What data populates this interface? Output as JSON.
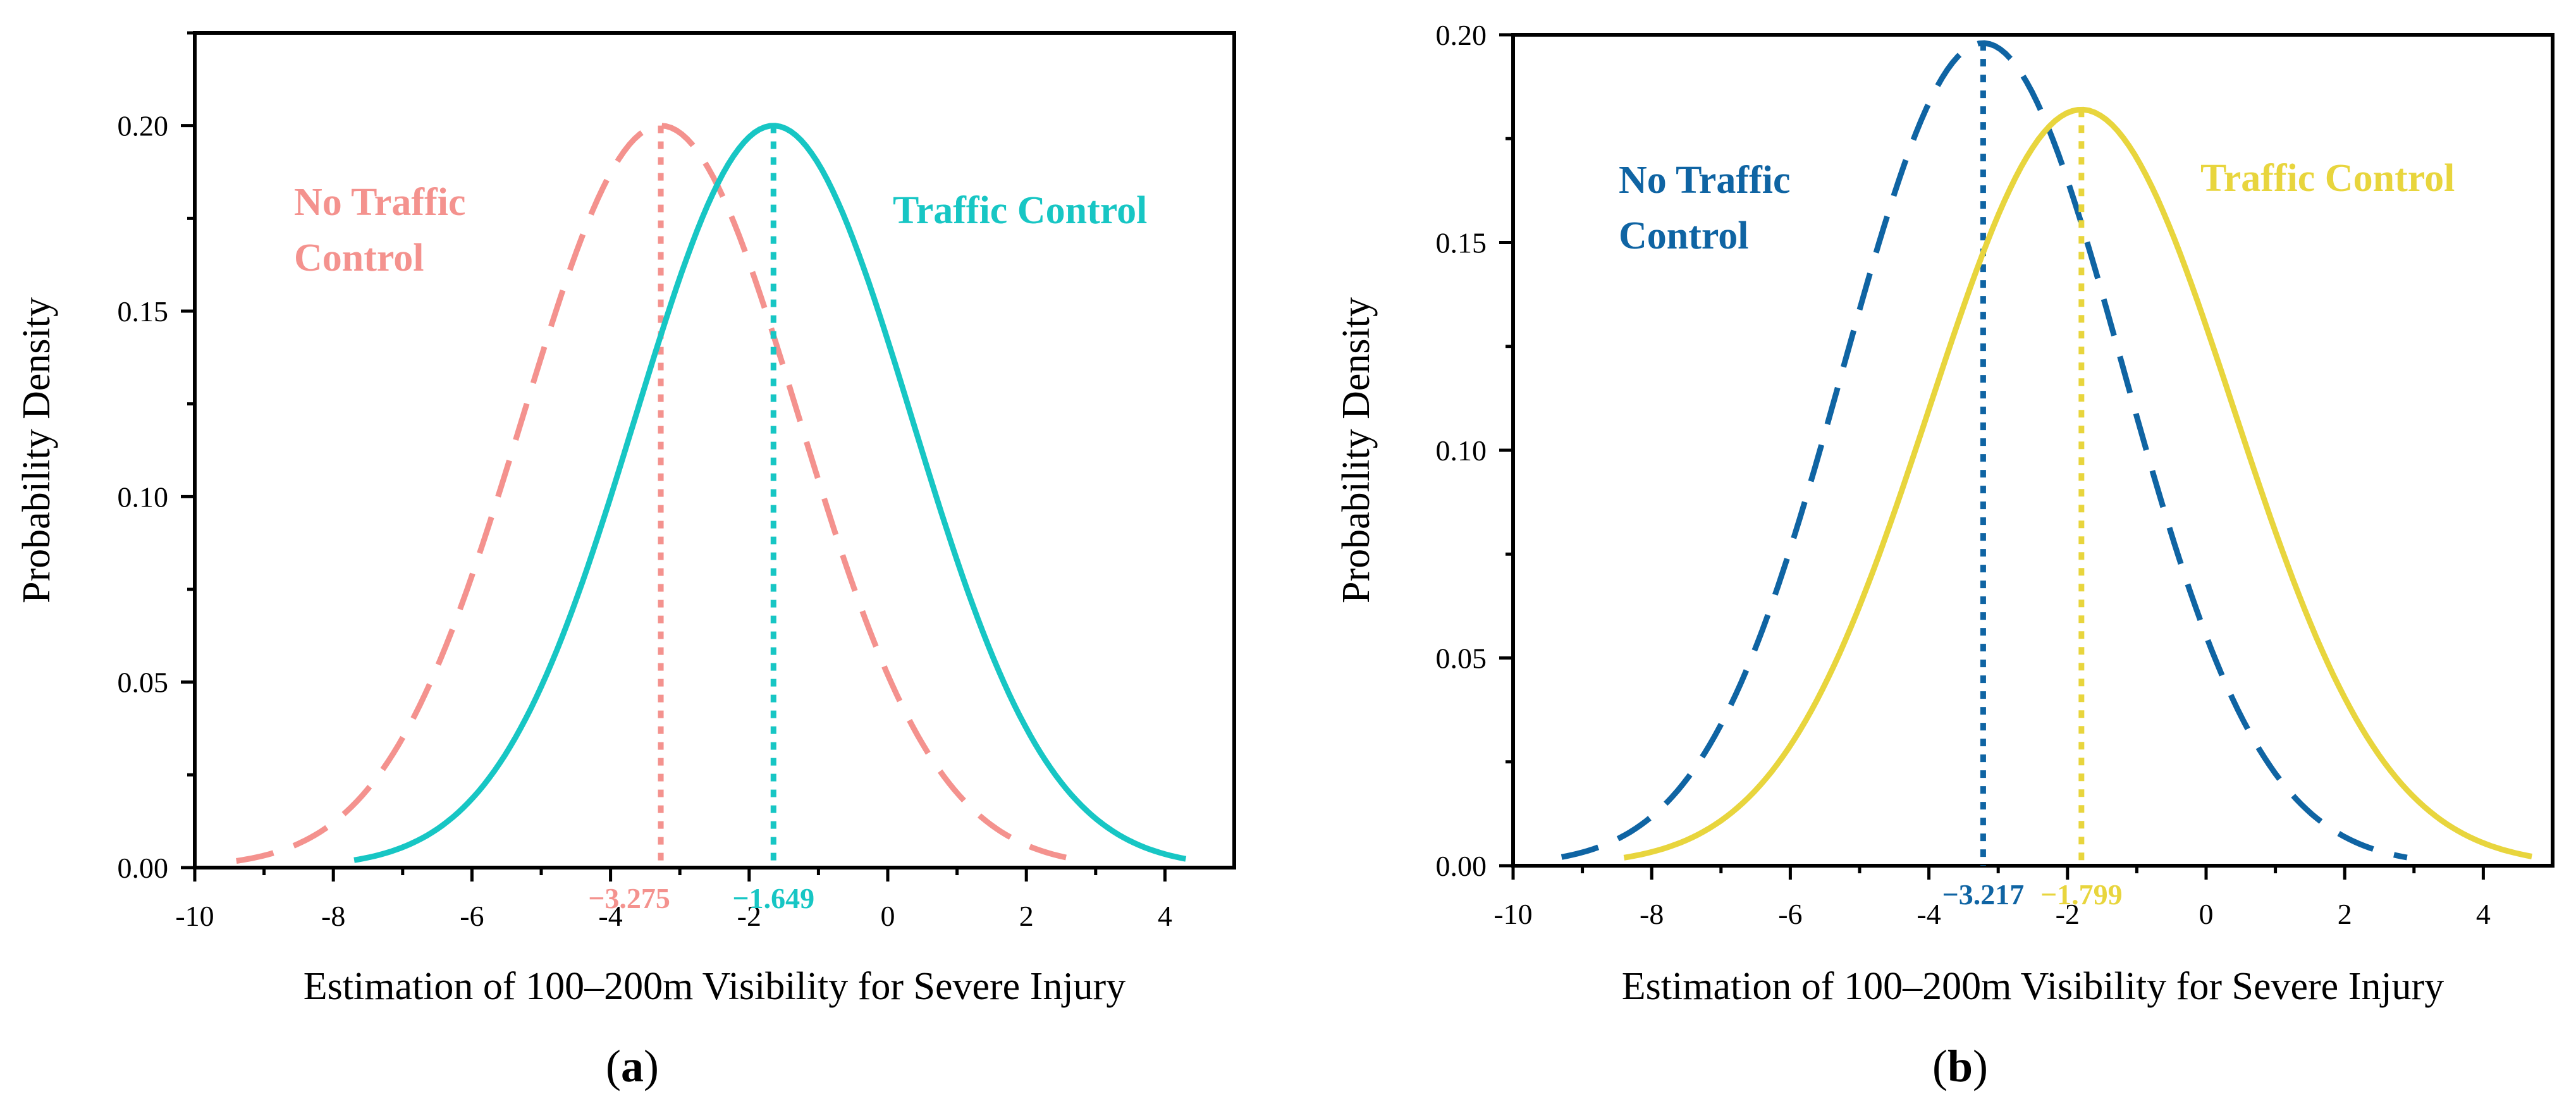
{
  "chart_data": [
    {
      "type": "line",
      "panel_label": "a",
      "xlabel": "Estimation of 100–200m Visibility for Severe Injury",
      "ylabel": "Probability Density",
      "xlim": [
        -10,
        5
      ],
      "ylim": [
        0,
        0.225
      ],
      "x_ticks": [
        -10,
        -8,
        -6,
        -4,
        -2,
        0,
        2,
        4
      ],
      "x_tick_labels": [
        "-10",
        "-8",
        "-6",
        "-4",
        "-2",
        "0",
        "2",
        "4"
      ],
      "y_ticks": [
        0.0,
        0.05,
        0.1,
        0.15,
        0.2
      ],
      "y_tick_labels": [
        "0.00",
        "0.05",
        "0.10",
        "0.15",
        "0.20"
      ],
      "series": [
        {
          "name": "No Traffic Control",
          "legend_lines": [
            "No Traffic",
            "Control"
          ],
          "color": "#f4928e",
          "style": "dashed",
          "mean": -3.275,
          "mean_label": "−3.275",
          "peak": 0.2,
          "sd": 1.995,
          "x_range": [
            -9.4,
            2.7
          ]
        },
        {
          "name": "Traffic Control",
          "legend_lines": [
            "Traffic Control"
          ],
          "color": "#17c6c4",
          "style": "solid",
          "mean": -1.649,
          "mean_label": "−1.649",
          "peak": 0.2,
          "sd": 1.995,
          "x_range": [
            -7.7,
            4.3
          ]
        }
      ]
    },
    {
      "type": "line",
      "panel_label": "b",
      "xlabel": "Estimation of 100–200m Visibility for Severe Injury",
      "ylabel": "Probability Density",
      "xlim": [
        -10,
        5
      ],
      "ylim": [
        0,
        0.2
      ],
      "x_ticks": [
        -10,
        -8,
        -6,
        -4,
        -2,
        0,
        2,
        4
      ],
      "x_tick_labels": [
        "-10",
        "-8",
        "-6",
        "-4",
        "-2",
        "0",
        "2",
        "4"
      ],
      "y_ticks": [
        0.0,
        0.05,
        0.1,
        0.15,
        0.2
      ],
      "y_tick_labels": [
        "0.00",
        "0.05",
        "0.10",
        "0.15",
        "0.20"
      ],
      "series": [
        {
          "name": "No Traffic Control",
          "legend_lines": [
            "No Traffic",
            "Control"
          ],
          "color": "#0f64a3",
          "style": "dashed",
          "mean": -3.217,
          "mean_label": "−3.217",
          "peak": 0.198,
          "sd": 2.015,
          "x_range": [
            -9.3,
            2.9
          ]
        },
        {
          "name": "Traffic Control",
          "legend_lines": [
            "Traffic Control"
          ],
          "color": "#e8d53d",
          "style": "solid",
          "mean": -1.799,
          "mean_label": "−1.799",
          "peak": 0.182,
          "sd": 2.19,
          "x_range": [
            -8.4,
            4.7
          ]
        }
      ]
    }
  ]
}
